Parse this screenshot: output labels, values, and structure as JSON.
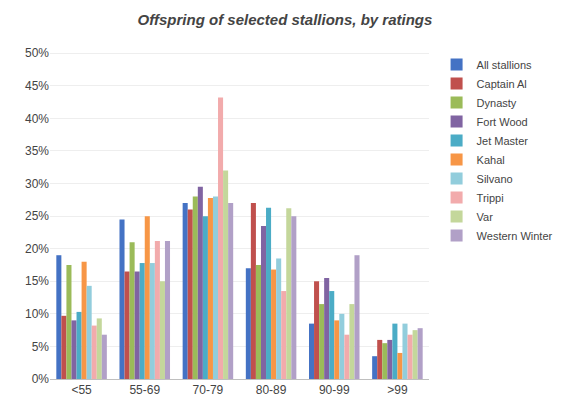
{
  "chart_data": {
    "type": "bar",
    "title": "Offspring of selected stallions, by ratings",
    "categories": [
      "<55",
      "55-69",
      "70-79",
      "80-89",
      "90-99",
      ">99"
    ],
    "series": [
      {
        "name": "All stallions",
        "color": "#4472C4",
        "values": [
          0.19,
          0.245,
          0.27,
          0.17,
          0.085,
          0.035
        ]
      },
      {
        "name": "Captain Al",
        "color": "#C0504D",
        "values": [
          0.097,
          0.165,
          0.26,
          0.27,
          0.15,
          0.06
        ]
      },
      {
        "name": "Dynasty",
        "color": "#9BBB59",
        "values": [
          0.175,
          0.21,
          0.28,
          0.175,
          0.115,
          0.055
        ]
      },
      {
        "name": "Fort Wood",
        "color": "#8064A2",
        "values": [
          0.09,
          0.165,
          0.295,
          0.235,
          0.155,
          0.06
        ]
      },
      {
        "name": "Jet Master",
        "color": "#4BACC6",
        "values": [
          0.103,
          0.178,
          0.25,
          0.263,
          0.135,
          0.085
        ]
      },
      {
        "name": "Kahal",
        "color": "#F79646",
        "values": [
          0.18,
          0.25,
          0.278,
          0.168,
          0.09,
          0.04
        ]
      },
      {
        "name": "Silvano",
        "color": "#92CDDC",
        "values": [
          0.143,
          0.178,
          0.28,
          0.185,
          0.1,
          0.085
        ]
      },
      {
        "name": "Trippi",
        "color": "#F2ABAC",
        "values": [
          0.082,
          0.212,
          0.432,
          0.135,
          0.068,
          0.068
        ]
      },
      {
        "name": "Var",
        "color": "#C4D79B",
        "values": [
          0.093,
          0.15,
          0.32,
          0.262,
          0.115,
          0.075
        ]
      },
      {
        "name": "Western Winter",
        "color": "#B1A0C7",
        "values": [
          0.068,
          0.212,
          0.27,
          0.25,
          0.19,
          0.078
        ]
      }
    ],
    "ylim": [
      0,
      0.505
    ],
    "yticks": [
      {
        "value": 0,
        "label": "0%"
      },
      {
        "value": 0.05,
        "label": "5%"
      },
      {
        "value": 0.1,
        "label": "10%"
      },
      {
        "value": 0.15,
        "label": "15%"
      },
      {
        "value": 0.2,
        "label": "20%"
      },
      {
        "value": 0.25,
        "label": "25%"
      },
      {
        "value": 0.3,
        "label": "30%"
      },
      {
        "value": 0.35,
        "label": "35%"
      },
      {
        "value": 0.4,
        "label": "40%"
      },
      {
        "value": 0.45,
        "label": "45%"
      },
      {
        "value": 0.5,
        "label": "50%"
      }
    ],
    "grid": true,
    "legend": "right"
  }
}
